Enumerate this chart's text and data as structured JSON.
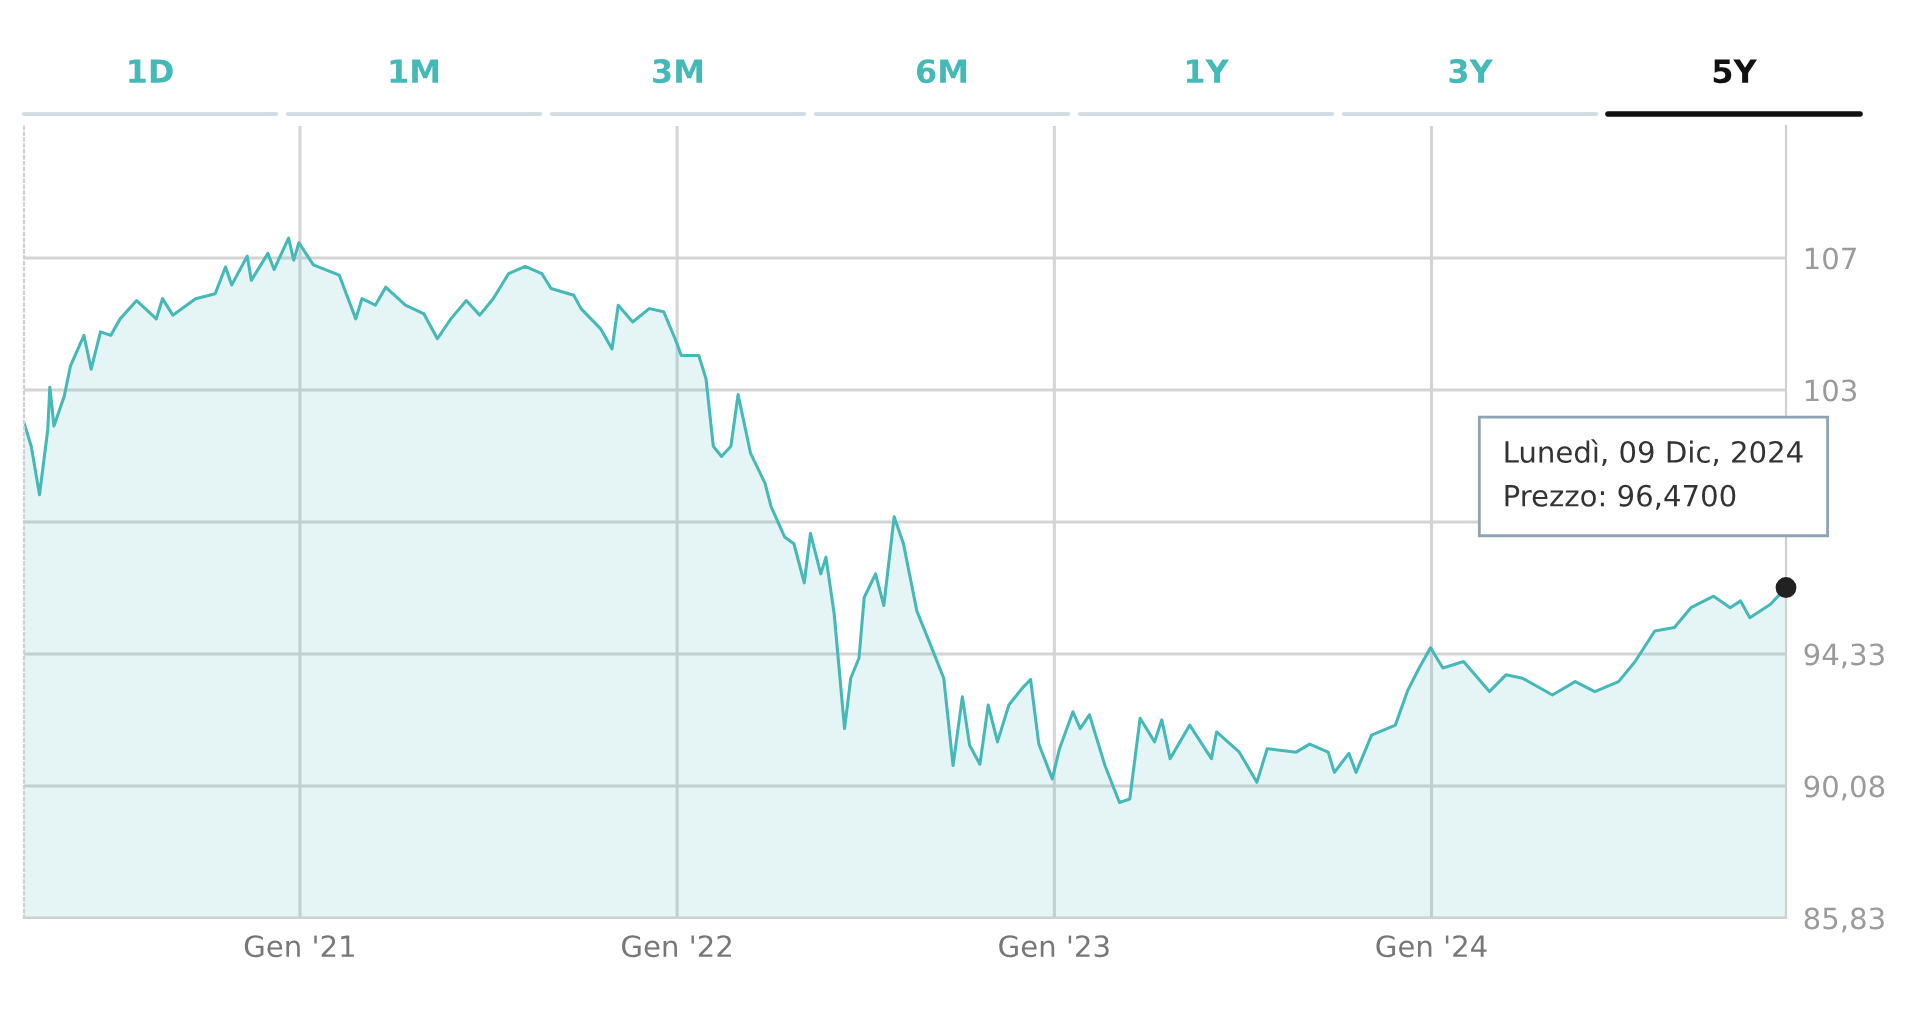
{
  "chart_data": {
    "type": "area",
    "x": [
      "2020-04-09",
      "2020-04-16",
      "2020-04-24",
      "2020-05-02",
      "2020-05-04",
      "2020-05-08",
      "2020-05-18",
      "2020-05-24",
      "2020-06-06",
      "2020-06-13",
      "2020-06-22",
      "2020-07-02",
      "2020-07-11",
      "2020-07-27",
      "2020-08-15",
      "2020-08-21",
      "2020-08-31",
      "2020-09-22",
      "2020-10-11",
      "2020-10-21",
      "2020-10-27",
      "2020-11-11",
      "2020-11-15",
      "2020-12-01",
      "2020-12-07",
      "2020-12-21",
      "2020-12-26",
      "2020-12-31",
      "2021-01-14",
      "2021-02-08",
      "2021-02-24",
      "2021-03-02",
      "2021-03-15",
      "2021-03-25",
      "2021-04-13",
      "2021-05-01",
      "2021-05-14",
      "2021-05-27",
      "2021-06-11",
      "2021-06-24",
      "2021-07-07",
      "2021-07-22",
      "2021-08-07",
      "2021-08-23",
      "2021-09-01",
      "2021-09-23",
      "2021-09-30",
      "2021-10-19",
      "2021-10-30",
      "2021-11-05",
      "2021-11-19",
      "2021-12-05",
      "2021-12-19",
      "2021-12-30",
      "2022-01-05",
      "2022-01-22",
      "2022-01-29",
      "2022-02-05",
      "2022-02-13",
      "2022-02-22",
      "2022-03-01",
      "2022-03-13",
      "2022-03-27",
      "2022-04-02",
      "2022-04-15",
      "2022-04-24",
      "2022-05-04",
      "2022-05-10",
      "2022-05-20",
      "2022-05-25",
      "2022-06-02",
      "2022-06-12",
      "2022-06-18",
      "2022-06-26",
      "2022-07-01",
      "2022-07-12",
      "2022-07-20",
      "2022-07-30",
      "2022-08-08",
      "2022-08-21",
      "2022-09-03",
      "2022-09-16",
      "2022-09-25",
      "2022-10-04",
      "2022-10-11",
      "2022-10-21",
      "2022-10-29",
      "2022-11-07",
      "2022-11-18",
      "2022-12-01",
      "2022-12-09",
      "2022-12-17",
      "2022-12-30",
      "2023-01-06",
      "2023-01-19",
      "2023-01-26",
      "2023-02-04",
      "2023-02-19",
      "2023-03-05",
      "2023-03-15",
      "2023-03-25",
      "2023-04-08",
      "2023-04-15",
      "2023-04-23",
      "2023-05-12",
      "2023-06-02",
      "2023-06-07",
      "2023-06-29",
      "2023-07-16",
      "2023-07-26",
      "2023-08-23",
      "2023-09-05",
      "2023-09-23",
      "2023-09-29",
      "2023-10-13",
      "2023-10-20",
      "2023-11-04",
      "2023-11-27",
      "2023-12-09",
      "2023-12-20",
      "2023-12-31",
      "2024-01-12",
      "2024-02-01",
      "2024-02-26",
      "2024-03-13",
      "2024-03-29",
      "2024-04-27",
      "2024-05-19",
      "2024-06-07",
      "2024-06-30",
      "2024-07-16",
      "2024-08-04",
      "2024-08-23",
      "2024-09-08",
      "2024-09-30",
      "2024-10-16",
      "2024-10-26",
      "2024-11-04",
      "2024-11-24",
      "2024-12-09"
    ],
    "series": [
      {
        "color": "#45b8b8",
        "values": [
          101.78,
          101.02,
          99.46,
          101.56,
          102.92,
          101.67,
          102.64,
          103.61,
          104.59,
          103.5,
          104.7,
          104.59,
          105.12,
          105.71,
          105.12,
          105.77,
          105.24,
          105.77,
          105.93,
          106.79,
          106.21,
          107.14,
          106.36,
          107.23,
          106.71,
          107.72,
          107.01,
          107.57,
          106.86,
          106.53,
          105.12,
          105.77,
          105.56,
          106.14,
          105.56,
          105.28,
          104.48,
          105.12,
          105.71,
          105.24,
          105.77,
          106.58,
          106.81,
          106.58,
          106.1,
          105.88,
          105.45,
          104.8,
          104.15,
          105.56,
          105.02,
          105.45,
          105.35,
          104.48,
          103.94,
          103.94,
          103.18,
          101.02,
          100.69,
          101.02,
          102.68,
          100.8,
          99.83,
          99.07,
          98.1,
          97.88,
          96.62,
          98.21,
          96.91,
          97.45,
          95.61,
          91.93,
          93.55,
          94.2,
          96.15,
          96.91,
          95.89,
          98.75,
          97.88,
          95.71,
          94.64,
          93.55,
          90.74,
          92.95,
          91.39,
          90.78,
          92.69,
          91.5,
          92.69,
          93.23,
          93.51,
          91.43,
          90.31,
          91.28,
          92.47,
          91.93,
          92.37,
          90.74,
          89.55,
          89.66,
          92.26,
          91.5,
          92.21,
          90.96,
          92.04,
          90.96,
          91.82,
          91.17,
          90.2,
          91.28,
          91.17,
          91.43,
          91.17,
          90.52,
          91.13,
          90.52,
          91.72,
          92.04,
          93.16,
          93.88,
          94.53,
          93.88,
          94.09,
          93.12,
          93.66,
          93.55,
          93.01,
          93.44,
          93.12,
          93.44,
          94.09,
          95.07,
          95.18,
          95.82,
          96.19,
          95.82,
          96.04,
          95.5,
          95.93,
          96.47
        ]
      }
    ],
    "xlim": [
      "2020-04-09",
      "2024-12-09"
    ],
    "xticks": [
      {
        "value": "2021-01-01",
        "label": "Gen '21"
      },
      {
        "value": "2022-01-01",
        "label": "Gen '22"
      },
      {
        "value": "2023-01-01",
        "label": "Gen '23"
      },
      {
        "value": "2024-01-01",
        "label": "Gen '24"
      }
    ],
    "ylim": [
      85.83,
      111.33
    ],
    "yticks": [
      {
        "value": 85.83,
        "label": "85,83"
      },
      {
        "value": 90.08,
        "label": "90,08"
      },
      {
        "value": 94.33,
        "label": "94,33"
      },
      {
        "value": 98.58,
        "label": null
      },
      {
        "value": 102.83,
        "label": "103"
      },
      {
        "value": 107.08,
        "label": "107"
      }
    ],
    "grid": true,
    "annotations": [
      "1D",
      "1M",
      "3M",
      "6M",
      "1Y",
      "3Y",
      "5Y",
      {
        "text": "Lunedì, 09 Dic, 2024\nPrezzo: 96,4700",
        "x": "2024-12-09",
        "y": 96.47
      }
    ]
  }
}
